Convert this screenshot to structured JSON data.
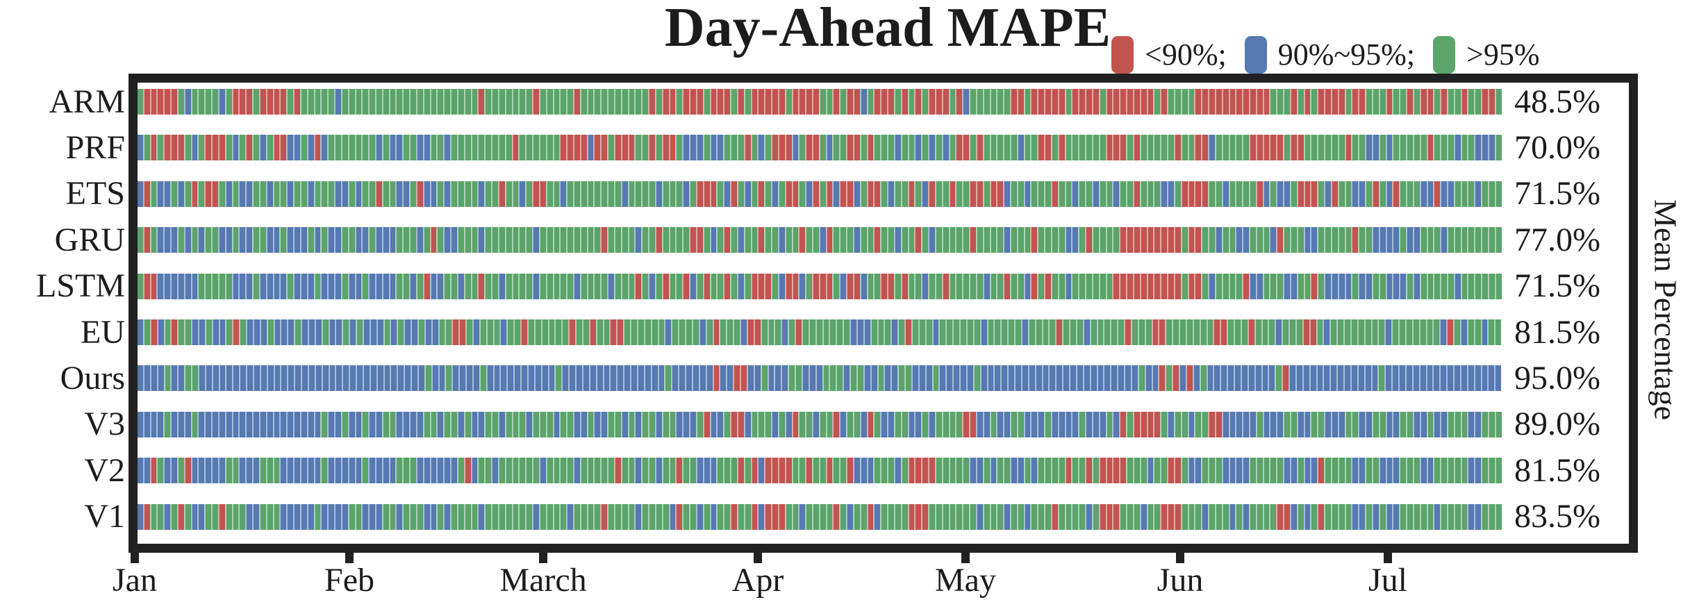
{
  "chart_data": {
    "type": "heatmap",
    "title": "Day-Ahead MAPE",
    "right_axis_label": "Mean Percentage",
    "legend_position": "top-right",
    "colors": {
      "r": "#C25450",
      "b": "#5679B2",
      "g": "#5BA46B"
    },
    "legend": [
      {
        "key": "r",
        "label": "<90%;",
        "color": "#C25450"
      },
      {
        "key": "b",
        "label": "90%~95%;",
        "color": "#5679B2"
      },
      {
        "key": "g",
        "label": ">95%",
        "color": "#5BA46B"
      }
    ],
    "x_axis": {
      "tick_labels": [
        "Jan",
        "Feb",
        "March",
        "Apr",
        "May",
        "Jun",
        "Jul"
      ],
      "range_days": 200
    },
    "rows": [
      {
        "label": "ARM",
        "mean_percentage": "48.5%",
        "seq": "grrrrrgbggggbgrrrgrrrrgrgggggbggggggggggggggggggggrgggggggrgggggrggggggggggrgrrgrrrgrrrgrgrrrrrgrrrrggrgrrbgrrrgrgrgrrrgrbggggggrrgrrrrrgrrrrgrrrrrrrgrggggrrrrrrrrrrrgggrgrgrrrrgrrgggrggrgrrgrggrggrrg"
      },
      {
        "label": "PRF",
        "mean_percentage": "70.0%",
        "seq": "bgrgrrrgbgrrrgbgrgbgrrbbgbrbgggggggbgbbggbbggbgggggggggrggggggrrrrbrrgrrrggrgrrgbbbgbbgggrgbgrrrbgrrgbggrrgrgggbggbgbgbgrrgrgggggbggrrgrggggggrrrgrgggggrggrrbgggggrrrrrgrrggggggrggbbgbgggggrgggbggbbbg"
      },
      {
        "label": "ETS",
        "mean_percentage": "71.5%",
        "seq": "brgbbgbgrgrrgbgbbggbggbggbgggbbgbggrggbbgrbbgbggggbggrggbgrrggbggggggggbggggbgggbgrrrgbrgbgrgbgrrgbrgrbrrbgrrgbggrgbrggrggrrgrrbggbgggrggbggbggbggrgggbbgrrrrggbggggrbgbbgrrrgbrggbbgrgbrgggbbrbbgggbggg"
      },
      {
        "label": "GRU",
        "mean_percentage": "77.0%",
        "seq": "grgbbbgbgbggbbgbbggbbgbbbgbgbbggbbgbbbgggbgrgbbgggbgggggggbgggggggggrggggbggrggggrrgbgrgbggrggbggrggbrgggbggrggbggrgbgggggrggggbgggrggggbbgrggggrrrrrrrrrgrrggbggbbgggbrgggbbgggggrggbbbbgbbgggbgggggggg"
      },
      {
        "label": "LSTM",
        "mean_percentage": "71.5%",
        "seq": "grrbbbbbbgggggbbbgbbbbgbbbgbbbgbbgbbbbggbgrbbggbggrggbggggbgggggbggggbgggrgbgrggrbgrggrgbgrrrgbrrbgrrrgbrrbggrrgrggbggrgggggbggrggbrgrggbggggggrrrrrrrrrrgrrgbggggrbbgggbbggrgbbbbgbbggbbbgbgggggbgggggg"
      },
      {
        "label": "EU",
        "mean_percentage": "81.5%",
        "seq": "bgrbgrggbbgbbgrgbbbgbbbgbbbgbbgbgbbbgbgbbgbbggrrgbgggbggrggggggrggrggrrggggggbggggbgrgggbrrgggbgrgggggggbbbgggbgrgggbggggggbgggggbggggrgggbgggggrgggrrgggggggrrgggrgggbgggrrgbggggggggbgggggggbrgbggbgg"
      },
      {
        "label": "Ours",
        "mean_percentage": "95.0%",
        "seq": "bbbbgbbggbbbbbbbbbbbbbbbbbbbbbbbbbbbbbbbbbgbbgbbbbgbbbbbbbbbbgbbbbbbbbbbbbbbbgbbbbbbrbbrrbbgbbbggbbbgggbggbbgbbggbbbgbbbbbgbbbbbbbbbbbbbbbbbbbbbbbgbbrgrbrbgbbbbbbbbbbgrbbbbbbbbbbbbbgbbbbbbbbbbbbbbbbb"
      },
      {
        "label": "V3",
        "mean_percentage": "89.0%",
        "seq": "bbbbgbbbgbbbbbbbbbbbbbbbbbbgbbgbbgbbggbbbbggbggbgbbggbgggbgggbggbbgbbggbgbggbggbbbgrbbgrrbgggbgbrggbggrbggbrgbbggbbgbggggrrbbgbbggbbbgbbbbgbbbgbrgrrrrgbggbggrrbbbbbgbbbggbbggbbbggbbggbbggbbgbbgggbbggg"
      },
      {
        "label": "V2",
        "mean_percentage": "81.5%",
        "seq": "bbrgbbgrbbbbbggbbbgggbbbbbbgbbbbbgbbbbgggbbbbbbgrbggbggggggbggggbgggggrggbggbggrggbbbgggrgrbrrrrggrggrggrbbbgggbgrrrrgggggbbgbggbbgbggggrggrgrrrrgggbggrrgbbgggbbbbgggggbbgbbrggggbbggbbbgggbbgggggbbggg"
      },
      {
        "label": "V1",
        "mean_percentage": "83.5%",
        "seq": "brggbgrgbbggrgggbbgggbbbbbgbbbbggbbbggbgggbbgbggggbgggggggbggggbggggrggggbggggbrggbgbggrggrbrrrggbggggrgbggrbggggrrrgggggggbgggbggbgggrggggbgrrrgggbggrrrgggbgggbgbggggrrbgbgrggggbbgbgbbgggggbggggbbggg"
      }
    ],
    "layout": {
      "bars_per_row": 200,
      "grid": false
    }
  }
}
